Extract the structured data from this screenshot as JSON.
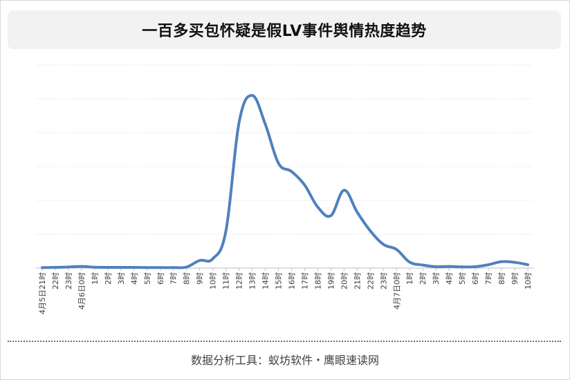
{
  "chart_data": {
    "type": "line",
    "title": "一百多买包怀疑是假LV事件舆情热度趋势",
    "xlabel": "",
    "ylabel": "",
    "categories": [
      "4月5日21时",
      "22时",
      "23时",
      "4月6日0时",
      "1时",
      "2时",
      "3时",
      "4时",
      "5时",
      "6时",
      "7时",
      "8时",
      "9时",
      "10时",
      "11时",
      "12时",
      "13时",
      "14时",
      "15时",
      "16时",
      "17时",
      "18时",
      "19时",
      "20时",
      "21时",
      "22时",
      "23时",
      "4月7日0时",
      "1时",
      "2时",
      "3时",
      "4时",
      "5时",
      "6时",
      "7时",
      "8时",
      "9时",
      "10时"
    ],
    "series": [
      {
        "values": [
          0.3,
          0.4,
          0.6,
          1.0,
          0.5,
          0.4,
          0.4,
          0.4,
          0.3,
          0.3,
          0.3,
          0.6,
          4.5,
          5.5,
          22,
          86,
          102,
          85,
          62,
          57,
          49,
          36,
          31,
          46,
          33,
          22,
          14,
          11,
          3.5,
          1.8,
          0.8,
          1.0,
          0.7,
          0.8,
          2.0,
          3.8,
          3.4,
          2.0
        ]
      }
    ],
    "ylim": [
      0,
      120
    ],
    "grid": true,
    "line_color": "#4f81bd"
  },
  "footer": {
    "source": "数据分析工具：蚁坊软件・鹰眼速读网"
  }
}
